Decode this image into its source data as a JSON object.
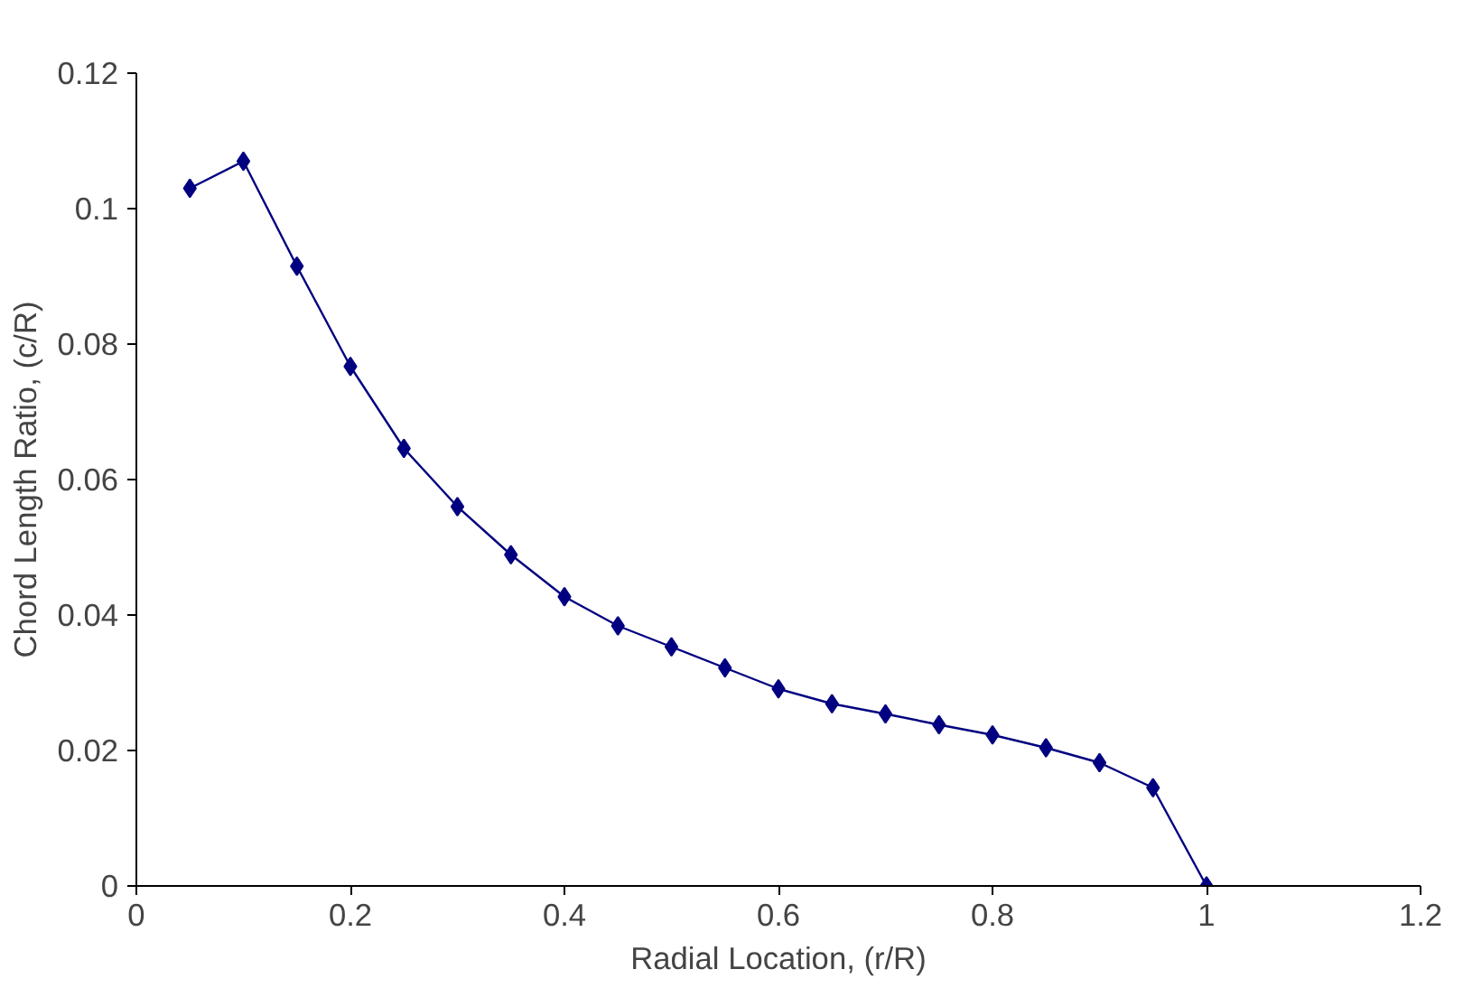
{
  "chart_data": {
    "type": "line",
    "xlabel": "Radial Location, (r/R)",
    "ylabel": "Chord Length Ratio, (c/R)",
    "x": [
      0.05,
      0.1,
      0.15,
      0.2,
      0.25,
      0.3,
      0.35,
      0.4,
      0.45,
      0.5,
      0.55,
      0.6,
      0.65,
      0.7,
      0.75,
      0.8,
      0.85,
      0.9,
      0.95,
      1.0
    ],
    "series": [
      {
        "color": "#000080",
        "values": [
          0.103,
          0.107,
          0.0915,
          0.0767,
          0.0646,
          0.056,
          0.0489,
          0.0427,
          0.0384,
          0.0353,
          0.0322,
          0.0291,
          0.0269,
          0.0254,
          0.0238,
          0.0223,
          0.0204,
          0.0182,
          0.0145,
          0
        ]
      }
    ],
    "xlim": [
      0,
      1.2
    ],
    "xticks": [
      0,
      0.2,
      0.4,
      0.6,
      0.8,
      1,
      1.2
    ],
    "ylim": [
      0,
      0.12
    ],
    "yticks": [
      0,
      0.02,
      0.04,
      0.06,
      0.08,
      0.1,
      0.12
    ],
    "grid": false,
    "marker": "diamond",
    "line_style": "solid"
  }
}
